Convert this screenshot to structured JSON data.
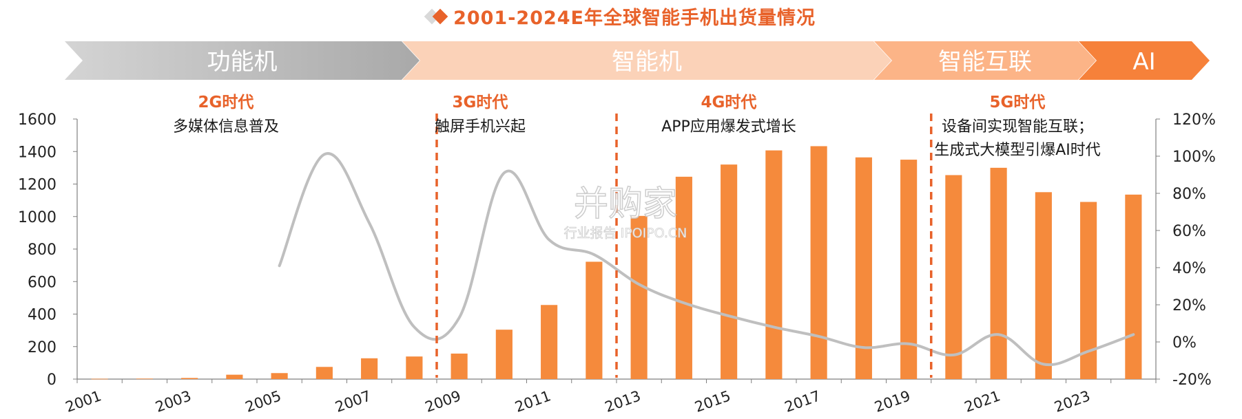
{
  "chart_data": {
    "type": "bar+line",
    "title": "2001-2024E年全球智能手机出货量情况",
    "categories": [
      "2001",
      "2002",
      "2003",
      "2004",
      "2005",
      "2006",
      "2007",
      "2008",
      "2009",
      "2010",
      "2011",
      "2012",
      "2013",
      "2014",
      "2015",
      "2016",
      "2017",
      "2018",
      "2019",
      "2020",
      "2021",
      "2022",
      "2023",
      "2024E"
    ],
    "x_tick_labels": [
      "2001",
      "2003",
      "2005",
      "2007",
      "2009",
      "2011",
      "2013",
      "2015",
      "2017",
      "2019",
      "2021",
      "2023"
    ],
    "series": [
      {
        "values": [
          2,
          3,
          7,
          27,
          37,
          75,
          128,
          139,
          157,
          304,
          456,
          722,
          1004,
          1245,
          1320,
          1407,
          1433,
          1364,
          1350,
          1255,
          1300,
          1150,
          1090,
          1135
        ]
      },
      {
        "values": [
          null,
          null,
          null,
          null,
          41,
          101,
          64,
          8,
          13,
          91,
          55,
          47,
          31,
          21,
          14,
          8,
          3,
          -3,
          -1,
          -7,
          4,
          -12,
          -5,
          4
        ]
      }
    ],
    "y_left": {
      "min": 0,
      "max": 1600,
      "ticks": [
        "0",
        "200",
        "400",
        "600",
        "800",
        "1000",
        "1200",
        "1400",
        "1600"
      ]
    },
    "y_right": {
      "min": -20,
      "max": 120,
      "ticks": [
        "-20%",
        "0%",
        "20%",
        "40%",
        "60%",
        "80%",
        "100%",
        "120%"
      ]
    },
    "eras": [
      {
        "label": "功能机",
        "color": "#b7b7b7"
      },
      {
        "label": "智能机",
        "color": "#fbd2b8"
      },
      {
        "label": "智能互联",
        "color": "#fcb487"
      },
      {
        "label": "AI",
        "color": "#f6813a"
      }
    ],
    "generations": [
      {
        "title": "2G时代",
        "lines": [
          "多媒体信息普及"
        ]
      },
      {
        "title": "3G时代",
        "lines": [
          "触屏手机兴起"
        ]
      },
      {
        "title": "4G时代",
        "lines": [
          "APP应用爆发式增长"
        ]
      },
      {
        "title": "5G时代",
        "lines": [
          "设备间实现智能互联；",
          "生成式大模型引爆AI时代"
        ]
      }
    ],
    "watermark": {
      "line1": "并购家",
      "line2": "行业报告 IPOIPO.CN"
    },
    "colors": {
      "bar": "#f58a3c",
      "line": "#bfbfbf",
      "divider": "#e8622a",
      "title": "#e8622a",
      "generation": "#e8622a"
    },
    "grid": false
  }
}
